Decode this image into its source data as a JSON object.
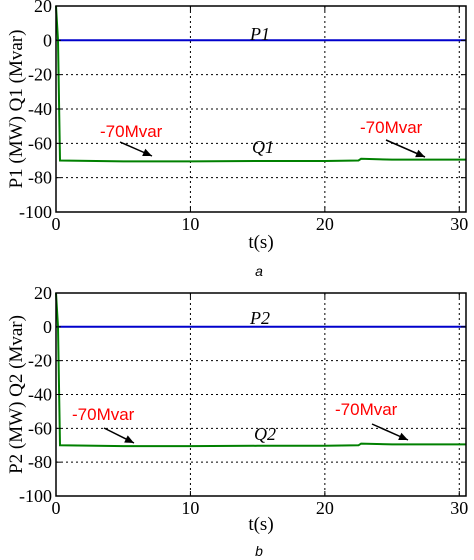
{
  "chart_data": [
    {
      "type": "line",
      "panel_label": "a",
      "xlabel": "t(s)",
      "ylabel": "P1 (MW)  Q1 (Mvar)",
      "xlim": [
        0,
        30.5
      ],
      "ylim": [
        -100,
        20
      ],
      "xticks": [
        "0",
        "10",
        "20",
        "30"
      ],
      "yticks": [
        "20",
        "0",
        "-20",
        "-40",
        "-60",
        "-80",
        "-100"
      ],
      "grid": true,
      "series": [
        {
          "name": "P1",
          "color": "#0000cc",
          "x": [
            0,
            0.15,
            5,
            10,
            15,
            20,
            25,
            30,
            30.5
          ],
          "y": [
            0,
            0,
            0,
            0,
            0,
            0,
            0,
            0,
            0
          ]
        },
        {
          "name": "Q1",
          "color": "#008000",
          "x": [
            0,
            0.15,
            0.3,
            5,
            10,
            15,
            20,
            22.5,
            22.7,
            25,
            30,
            30.5
          ],
          "y": [
            20,
            0,
            -70,
            -70.5,
            -70.5,
            -70.3,
            -70.3,
            -70,
            -69,
            -69.5,
            -69.5,
            -69.5
          ]
        }
      ],
      "annotations": [
        {
          "text": "-70Mvar",
          "x": 5.6,
          "y": -66
        },
        {
          "text": "-70Mvar",
          "x": 27.2,
          "y": -64
        }
      ]
    },
    {
      "type": "line",
      "panel_label": "b",
      "xlabel": "t(s)",
      "ylabel": "P2 (MW)  Q2 (Mvar)",
      "xlim": [
        0,
        30.5
      ],
      "ylim": [
        -100,
        20
      ],
      "xticks": [
        "0",
        "10",
        "20",
        "30"
      ],
      "yticks": [
        "20",
        "0",
        "-20",
        "-40",
        "-60",
        "-80",
        "-100"
      ],
      "grid": true,
      "series": [
        {
          "name": "P2",
          "color": "#0000cc",
          "x": [
            0,
            0.15,
            5,
            10,
            15,
            20,
            25,
            30,
            30.5
          ],
          "y": [
            0,
            0,
            0,
            0,
            0,
            0,
            0,
            0,
            0
          ]
        },
        {
          "name": "Q2",
          "color": "#008000",
          "x": [
            0,
            0.15,
            0.3,
            5,
            10,
            15,
            20,
            22.5,
            22.7,
            25,
            30,
            30.5
          ],
          "y": [
            20,
            0,
            -70,
            -70.5,
            -70.5,
            -70.3,
            -70.3,
            -70,
            -69,
            -69.5,
            -69.5,
            -69.5
          ]
        }
      ],
      "annotations": [
        {
          "text": "-70Mvar",
          "x": 3.6,
          "y": -62
        },
        {
          "text": "-70Mvar",
          "x": 25.6,
          "y": -60
        }
      ]
    }
  ]
}
